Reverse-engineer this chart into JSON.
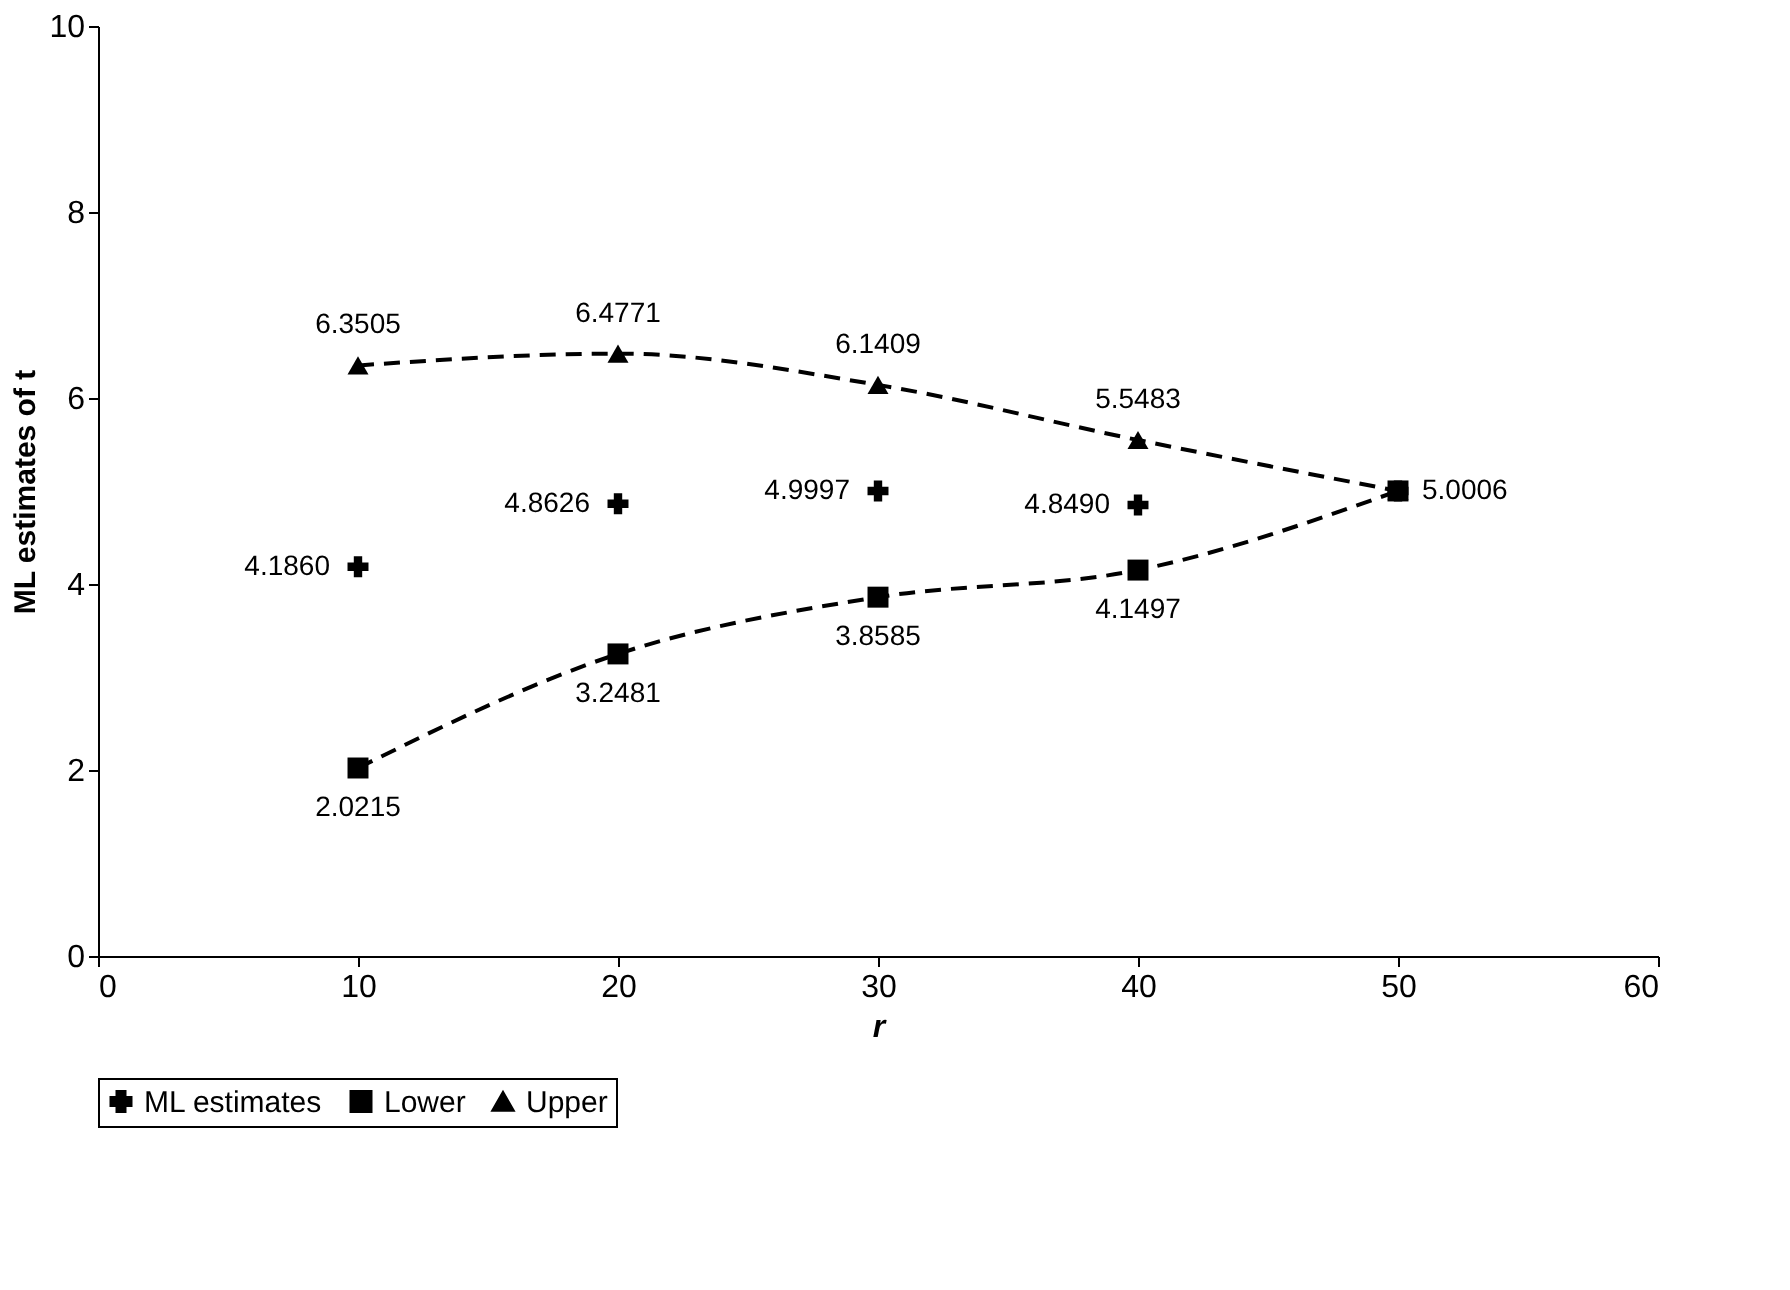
{
  "chart_data": {
    "type": "line",
    "xlabel": "r",
    "ylabel": "ML estimates of t",
    "x": [
      10,
      20,
      30,
      40,
      50
    ],
    "series": [
      {
        "name": "ML estimates",
        "type": "scatter",
        "marker": "cross",
        "color": "#000000",
        "values": [
          4.186,
          4.8626,
          4.9997,
          4.849,
          5.0006
        ],
        "value_labels": [
          "4.1860",
          "4.8626",
          "4.9997",
          "4.8490",
          "5.0006"
        ]
      },
      {
        "name": "Lower",
        "marker": "square",
        "line_style": "dashed",
        "color": "#000000",
        "values": [
          2.0215,
          3.2481,
          3.8585,
          4.1497,
          5.0006
        ],
        "value_labels": [
          "2.0215",
          "3.2481",
          "3.8585",
          "4.1497",
          null
        ]
      },
      {
        "name": "Upper",
        "marker": "triangle",
        "line_style": "dashed",
        "color": "#000000",
        "values": [
          6.3505,
          6.4771,
          6.1409,
          5.5483,
          5.0006
        ],
        "value_labels": [
          "6.3505",
          "6.4771",
          "6.1409",
          "5.5483",
          null
        ]
      }
    ],
    "xlim": [
      0,
      60
    ],
    "xticks": [
      0,
      10,
      20,
      30,
      40,
      50,
      60
    ],
    "ylim": [
      0,
      10
    ],
    "yticks": [
      0,
      2,
      4,
      6,
      8,
      10
    ],
    "grid": false,
    "legend": "bottom"
  }
}
